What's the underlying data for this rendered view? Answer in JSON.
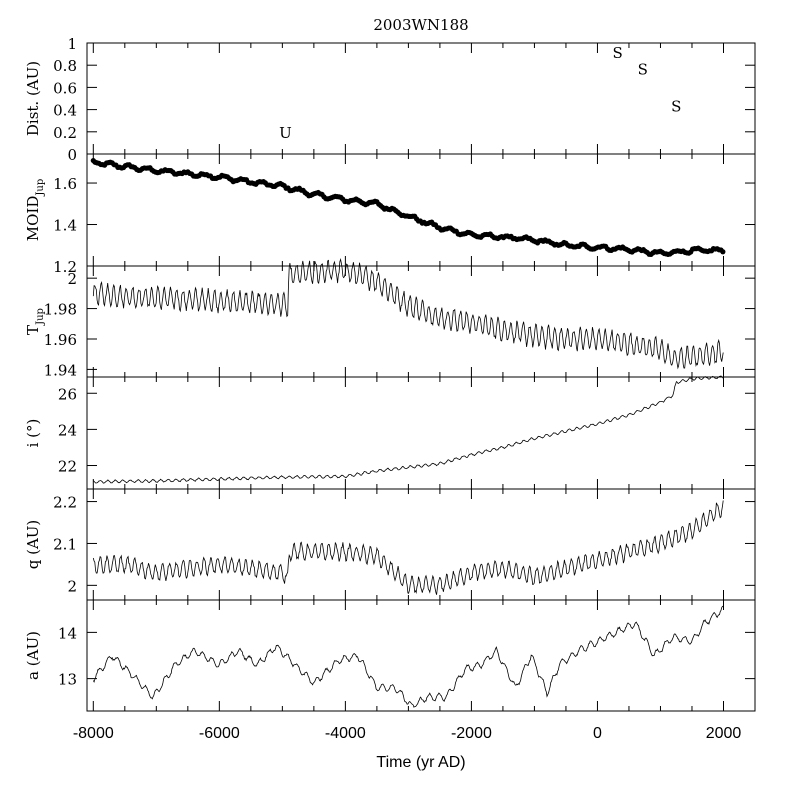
{
  "chart_data": {
    "type": "line",
    "title": "2003WN188",
    "xlabel": "Time (yr AD)",
    "xlim": [
      -8100,
      2500
    ],
    "x_ticks": [
      -8000,
      -6000,
      -4000,
      -2000,
      0,
      2000
    ],
    "x_tick_labels": [
      "-8000",
      "-6000",
      "-4000",
      "-2000",
      "0",
      "2000"
    ],
    "grid": false,
    "legend": "none",
    "panels": [
      {
        "key": "dist",
        "ylabel": "Dist. (AU)",
        "ylim": [
          0,
          1
        ],
        "y_ticks": [
          0,
          0.2,
          0.4,
          0.6,
          0.8,
          1
        ],
        "y_tick_labels": [
          "0",
          "0.2",
          "0.4",
          "0.6",
          "0.8",
          "1"
        ],
        "style": "markers",
        "points": [
          {
            "x": -4950,
            "y": 0.19,
            "label": "U"
          },
          {
            "x": 320,
            "y": 0.91,
            "label": "S"
          },
          {
            "x": 720,
            "y": 0.76,
            "label": "S"
          },
          {
            "x": 1250,
            "y": 0.43,
            "label": "S"
          }
        ]
      },
      {
        "key": "moid",
        "ylabel": "MOID",
        "ylabel_sub": "Jup",
        "ylim": [
          1.2,
          1.74
        ],
        "y_ticks": [
          1.2,
          1.4,
          1.6
        ],
        "y_tick_labels": [
          "1.2",
          "1.4",
          "1.6"
        ],
        "style": "dots",
        "x": [
          -8000,
          -7500,
          -7000,
          -6500,
          -6000,
          -5500,
          -5000,
          -4500,
          -4000,
          -3500,
          -3000,
          -2500,
          -2000,
          -1500,
          -1000,
          -500,
          0,
          500,
          1000,
          1500,
          2000
        ],
        "y": [
          1.7,
          1.68,
          1.66,
          1.645,
          1.63,
          1.605,
          1.585,
          1.545,
          1.52,
          1.5,
          1.44,
          1.385,
          1.35,
          1.34,
          1.325,
          1.3,
          1.29,
          1.28,
          1.26,
          1.275,
          1.275
        ],
        "noise": 0.008,
        "period": 300
      },
      {
        "key": "tjup",
        "ylabel": "T",
        "ylabel_sub": "Jup",
        "ylim": [
          1.935,
          2.008
        ],
        "y_ticks": [
          1.94,
          1.96,
          1.98,
          2.0
        ],
        "y_tick_labels": [
          "1.94",
          "1.96",
          "1.98",
          "2"
        ],
        "style": "line",
        "x": [
          -8000,
          -7500,
          -7000,
          -6500,
          -6000,
          -5500,
          -5000,
          -4910,
          -4900,
          -4500,
          -4000,
          -3500,
          -3000,
          -2500,
          -2000,
          -1500,
          -1000,
          -500,
          0,
          500,
          1000,
          1200,
          1500,
          2000
        ],
        "y": [
          1.99,
          1.988,
          1.987,
          1.986,
          1.985,
          1.984,
          1.983,
          1.981,
          2.002,
          2.004,
          2.005,
          1.998,
          1.982,
          1.974,
          1.971,
          1.966,
          1.962,
          1.96,
          1.96,
          1.957,
          1.953,
          1.947,
          1.948,
          1.952
        ],
        "noise": 0.0065,
        "period": 100
      },
      {
        "key": "incl",
        "ylabel": "i (°)",
        "ylim": [
          20.7,
          26.9
        ],
        "y_ticks": [
          22,
          24,
          26
        ],
        "y_tick_labels": [
          "22",
          "24",
          "26"
        ],
        "style": "line",
        "x": [
          -8000,
          -7000,
          -6000,
          -5000,
          -4000,
          -3500,
          -3000,
          -2500,
          -2000,
          -1500,
          -1000,
          -500,
          0,
          500,
          1000,
          1200,
          1250,
          1500,
          2000
        ],
        "y": [
          21.1,
          21.15,
          21.25,
          21.35,
          21.4,
          21.7,
          21.9,
          22.1,
          22.6,
          23.0,
          23.5,
          23.9,
          24.3,
          24.8,
          25.5,
          25.9,
          26.6,
          26.8,
          26.9
        ],
        "noise": 0.07,
        "period": 120
      },
      {
        "key": "q",
        "ylabel": "q (AU)",
        "ylim": [
          1.965,
          2.23
        ],
        "y_ticks": [
          2.0,
          2.1,
          2.2
        ],
        "y_tick_labels": [
          "2",
          "2.1",
          "2.2"
        ],
        "style": "line",
        "x": [
          -8000,
          -7500,
          -7000,
          -6500,
          -6000,
          -5500,
          -5000,
          -4910,
          -4900,
          -4500,
          -4000,
          -3500,
          -3000,
          -2500,
          -2000,
          -1500,
          -1000,
          -500,
          0,
          500,
          1000,
          1500,
          2000
        ],
        "y": [
          2.05,
          2.05,
          2.03,
          2.04,
          2.05,
          2.04,
          2.03,
          2.01,
          2.08,
          2.08,
          2.08,
          2.07,
          2.0,
          2.0,
          2.03,
          2.04,
          2.02,
          2.04,
          2.06,
          2.08,
          2.1,
          2.13,
          2.19
        ],
        "noise": 0.018,
        "period": 110
      },
      {
        "key": "a",
        "ylabel": "a (AU)",
        "ylim": [
          12.3,
          14.7
        ],
        "y_ticks": [
          13,
          14
        ],
        "y_tick_labels": [
          "13",
          "14"
        ],
        "style": "line",
        "x": [
          -8000,
          -7700,
          -7400,
          -7050,
          -6700,
          -6400,
          -6000,
          -5700,
          -5400,
          -5100,
          -4800,
          -4500,
          -4100,
          -3800,
          -3500,
          -3200,
          -2950,
          -2700,
          -2400,
          -2100,
          -1850,
          -1600,
          -1300,
          -1050,
          -800,
          -600,
          -300,
          0,
          300,
          600,
          900,
          1200,
          1500,
          1700,
          2000
        ],
        "y": [
          13.0,
          13.5,
          13.1,
          12.6,
          13.3,
          13.6,
          13.3,
          13.6,
          13.3,
          13.7,
          13.3,
          12.9,
          13.4,
          13.5,
          12.8,
          12.8,
          12.4,
          12.6,
          12.6,
          13.2,
          13.3,
          13.6,
          12.8,
          13.5,
          12.7,
          13.3,
          13.6,
          13.8,
          14.0,
          14.2,
          13.5,
          13.9,
          13.8,
          14.2,
          14.5
        ],
        "noise": 0.07,
        "period": 150
      }
    ]
  }
}
